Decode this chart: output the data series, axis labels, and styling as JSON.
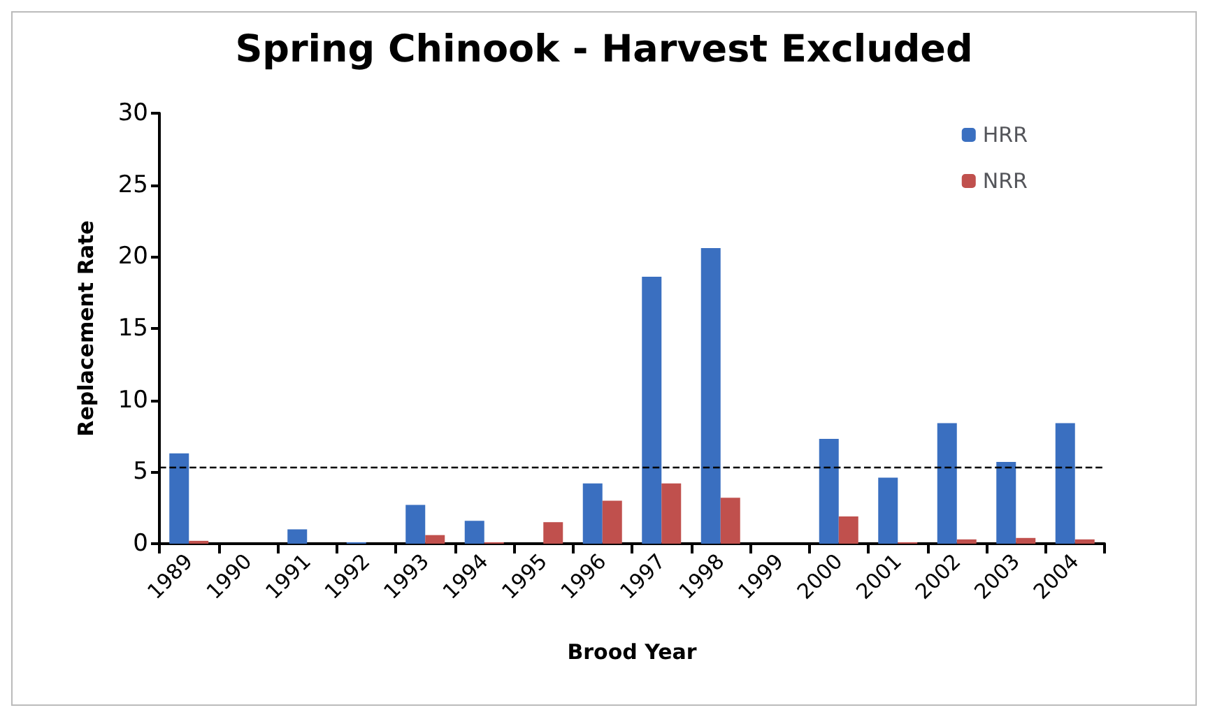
{
  "chart_data": {
    "type": "bar",
    "title": "Spring Chinook - Harvest Excluded",
    "xlabel": "Brood Year",
    "ylabel": "Replacement Rate",
    "categories": [
      "1989",
      "1990",
      "1991",
      "1992",
      "1993",
      "1994",
      "1995",
      "1996",
      "1997",
      "1998",
      "1999",
      "2000",
      "2001",
      "2002",
      "2003",
      "2004"
    ],
    "series": [
      {
        "name": "HRR",
        "color": "#3a6fc0",
        "values": [
          6.3,
          0,
          1.0,
          0.1,
          2.7,
          1.6,
          0,
          4.2,
          18.6,
          20.6,
          0,
          7.3,
          4.6,
          8.4,
          5.7,
          8.4
        ]
      },
      {
        "name": "NRR",
        "color": "#c0504d",
        "values": [
          0.2,
          0,
          0,
          0,
          0.6,
          0.1,
          1.5,
          3.0,
          4.2,
          3.2,
          0,
          1.9,
          0.1,
          0.3,
          0.4,
          0.3
        ]
      }
    ],
    "ylim": [
      0,
      30
    ],
    "yticks": [
      0,
      5,
      10,
      15,
      20,
      25,
      30
    ],
    "grid": false,
    "legend": "top right",
    "ref_lines": [
      {
        "axis": "y",
        "value": 5.3,
        "label": null,
        "color": "#000000",
        "line_style": "dashed"
      }
    ]
  }
}
